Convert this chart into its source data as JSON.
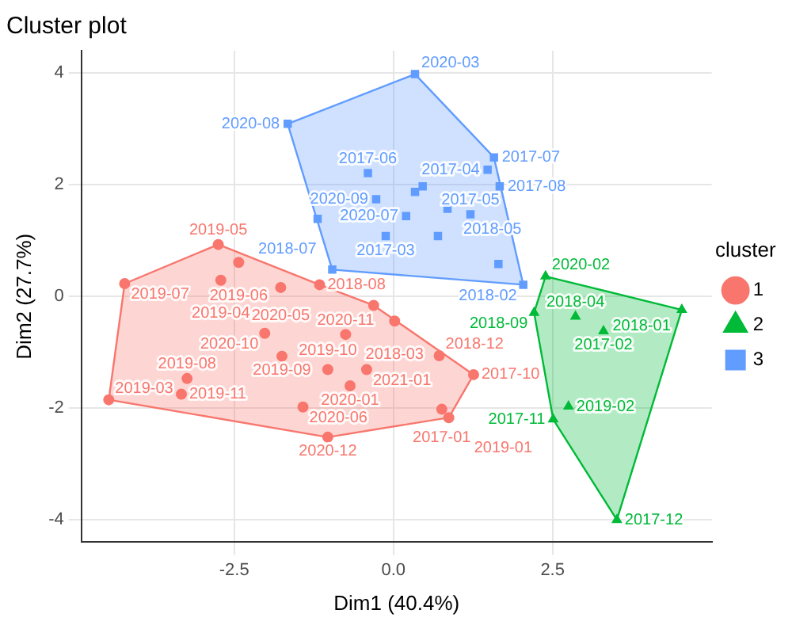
{
  "chart_data": {
    "type": "scatter",
    "title": "Cluster plot",
    "xlabel": "Dim1 (40.4%)",
    "ylabel": "Dim2 (27.7%)",
    "legend_title": "cluster",
    "legend": "right",
    "grid": true,
    "xlim": [
      -4.9,
      5.0
    ],
    "ylim": [
      -4.4,
      4.4
    ],
    "xticks": [
      -2.5,
      {
        "value": 0,
        "label": "0.0"
      },
      2.5
    ],
    "yticks": [
      -4,
      -2,
      0,
      2,
      4
    ],
    "series": [
      {
        "type": "area",
        "color": "#f8766d",
        "x": [
          -4.47,
          -4.22,
          -2.75,
          -1.16,
          -0.31,
          1.26,
          0.87,
          -1.03,
          -4.47
        ],
        "values": [
          -1.85,
          0.23,
          0.93,
          0.21,
          -0.16,
          -1.4,
          -2.17,
          -2.52,
          -1.85
        ]
      },
      {
        "type": "area",
        "color": "#00ba38",
        "x": [
          2.21,
          2.39,
          4.53,
          3.51,
          2.51,
          2.21
        ],
        "values": [
          -0.29,
          0.36,
          -0.24,
          -4.0,
          -2.2,
          -0.29
        ]
      },
      {
        "type": "area",
        "color": "#619cff",
        "x": [
          -1.66,
          0.34,
          1.58,
          2.04,
          -0.96,
          -1.66
        ],
        "values": [
          3.09,
          3.98,
          2.49,
          0.21,
          0.48,
          3.09
        ]
      },
      {
        "name": "1",
        "color": "#f8766d",
        "marker": "circle",
        "x": [
          -2.75,
          -2.43,
          -4.22,
          -2.71,
          -1.77,
          -1.16,
          0.02,
          -0.31,
          -2.02,
          -0.75,
          -1.75,
          -1.03,
          0.72,
          -0.42,
          -0.68,
          -3.24,
          -3.33,
          -4.47,
          -1.42,
          -1.03,
          1.26,
          0.76,
          0.87
        ],
        "values": [
          0.93,
          0.61,
          0.23,
          0.29,
          0.16,
          0.21,
          -0.44,
          -0.16,
          -0.66,
          -0.68,
          -1.07,
          -1.31,
          -1.06,
          -1.31,
          -1.6,
          -1.47,
          -1.75,
          -1.85,
          -1.98,
          -2.52,
          -1.4,
          -2.02,
          -2.17
        ],
        "value_labels": [
          "2019-05",
          "2019-06",
          "2019-07",
          "2019-04",
          "2020-05",
          "2018-08",
          "2018-03",
          null,
          "2020-10",
          "2020-11",
          "2019-09",
          "2019-10",
          "2018-12",
          "2021-01",
          "2020-01",
          "2019-08",
          "2019-11",
          "2019-03",
          "2020-06",
          "2020-12",
          "2017-10",
          "2017-01",
          "2019-01"
        ]
      },
      {
        "name": "2",
        "color": "#00ba38",
        "marker": "triangle",
        "x": [
          2.39,
          4.53,
          2.21,
          2.86,
          3.3,
          2.75,
          2.51,
          3.51
        ],
        "values": [
          0.36,
          -0.24,
          -0.29,
          -0.36,
          -0.62,
          -1.97,
          -2.2,
          -4.0
        ],
        "value_labels": [
          "2020-02",
          "2018-01",
          "2018-09",
          "2018-04",
          "2017-02",
          "2019-02",
          "2017-11",
          "2017-12"
        ]
      },
      {
        "name": "3",
        "color": "#619cff",
        "marker": "square",
        "x": [
          0.34,
          -1.66,
          1.58,
          1.67,
          1.48,
          -0.4,
          0.34,
          0.46,
          -0.27,
          0.2,
          0.85,
          1.21,
          -0.12,
          0.7,
          1.65,
          -0.96,
          2.04,
          -1.19
        ],
        "values": [
          3.98,
          3.09,
          2.49,
          1.97,
          2.27,
          2.21,
          1.87,
          1.97,
          1.74,
          1.44,
          1.57,
          1.47,
          1.08,
          1.08,
          0.58,
          0.48,
          0.21,
          1.39
        ],
        "value_labels": [
          "2020-03",
          "2020-08",
          "2017-07",
          "2017-08",
          "2017-04",
          "2017-06",
          null,
          null,
          "2020-09",
          "2020-07",
          "2018-05",
          "2017-05",
          "2017-03",
          null,
          null,
          "2018-07",
          "2018-02",
          null
        ]
      }
    ]
  }
}
